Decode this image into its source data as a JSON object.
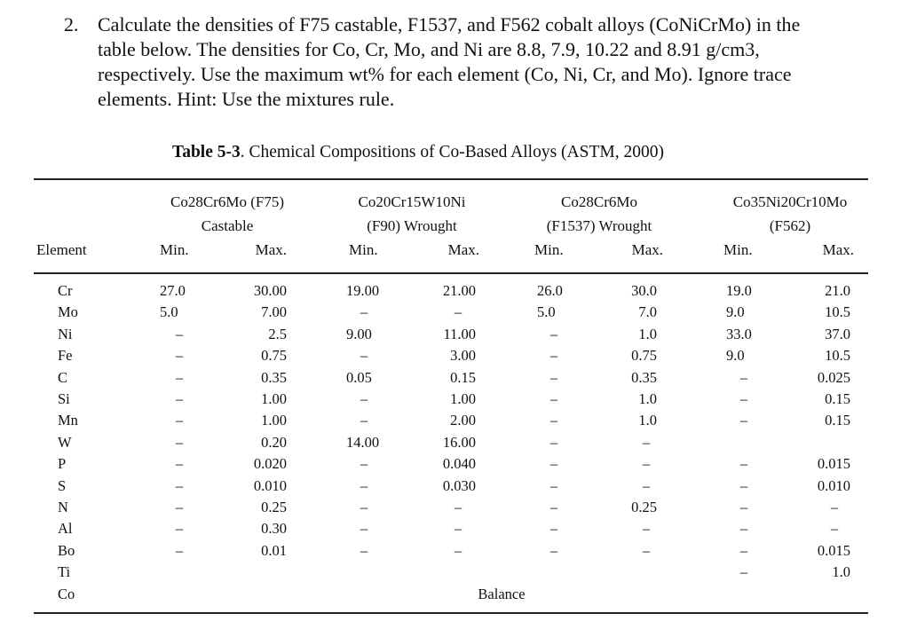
{
  "question": {
    "number": "2.",
    "lines": [
      "Calculate the densities of F75 castable, F1537, and F562 cobalt alloys (CoNiCrMo) in the",
      "table below. The densities for Co, Cr, Mo, and Ni are 8.8, 7.9, 10.22 and 8.91 g/cm3,",
      "respectively. Use the maximum wt% for each element (Co, Ni, Cr, and Mo). Ignore trace",
      "elements. Hint: Use the mixtures rule."
    ]
  },
  "table": {
    "caption_label": "Table 5-3",
    "caption_text": ". Chemical Compositions of Co-Based Alloys (ASTM, 2000)",
    "element_header": "Element",
    "groups": [
      {
        "line1": "Co28Cr6Mo (F75)",
        "line2": "Castable",
        "min": "Min.",
        "max": "Max."
      },
      {
        "line1": "Co20Cr15W10Ni",
        "line2": "(F90) Wrought",
        "min": "Min.",
        "max": "Max."
      },
      {
        "line1": "Co28Cr6Mo",
        "line2": "(F1537) Wrought",
        "min": "Min.",
        "max": "Max."
      },
      {
        "line1": "Co35Ni20Cr10Mo",
        "line2": "(F562)",
        "min": "Min.",
        "max": "Max."
      }
    ],
    "rows": [
      {
        "el": "Cr",
        "v": [
          "27.0",
          "30.00",
          "19.00",
          "21.00",
          "26.0",
          "30.0",
          "19.0",
          "21.0"
        ]
      },
      {
        "el": "Mo",
        "v": [
          "5.0",
          "7.00",
          "–",
          "–",
          "5.0",
          "7.0",
          "9.0",
          "10.5"
        ]
      },
      {
        "el": "Ni",
        "v": [
          "–",
          "2.5",
          "9.00",
          "11.00",
          "–",
          "1.0",
          "33.0",
          "37.0"
        ]
      },
      {
        "el": "Fe",
        "v": [
          "–",
          "0.75",
          "–",
          "3.00",
          "–",
          "0.75",
          "9.0",
          "10.5"
        ]
      },
      {
        "el": "C",
        "v": [
          "–",
          "0.35",
          "0.05",
          "0.15",
          "–",
          "0.35",
          "–",
          "0.025"
        ]
      },
      {
        "el": "Si",
        "v": [
          "–",
          "1.00",
          "–",
          "1.00",
          "–",
          "1.0",
          "–",
          "0.15"
        ]
      },
      {
        "el": "Mn",
        "v": [
          "–",
          "1.00",
          "–",
          "2.00",
          "–",
          "1.0",
          "–",
          "0.15"
        ]
      },
      {
        "el": "W",
        "v": [
          "–",
          "0.20",
          "14.00",
          "16.00",
          "–",
          "–",
          "",
          ""
        ]
      },
      {
        "el": "P",
        "v": [
          "–",
          "0.020",
          "–",
          "0.040",
          "–",
          "–",
          "–",
          "0.015"
        ]
      },
      {
        "el": "S",
        "v": [
          "–",
          "0.010",
          "–",
          "0.030",
          "–",
          "–",
          "–",
          "0.010"
        ]
      },
      {
        "el": "N",
        "v": [
          "–",
          "0.25",
          "–",
          "–",
          "–",
          "0.25",
          "–",
          "–"
        ]
      },
      {
        "el": "Al",
        "v": [
          "–",
          "0.30",
          "–",
          "–",
          "–",
          "–",
          "–",
          "–"
        ]
      },
      {
        "el": "Bo",
        "v": [
          "–",
          "0.01",
          "–",
          "–",
          "–",
          "–",
          "–",
          "0.015"
        ]
      },
      {
        "el": "Ti",
        "v": [
          "",
          "",
          "",
          "",
          "",
          "",
          "–",
          "1.0"
        ]
      }
    ],
    "co_row": {
      "el": "Co",
      "value": "Balance"
    }
  }
}
